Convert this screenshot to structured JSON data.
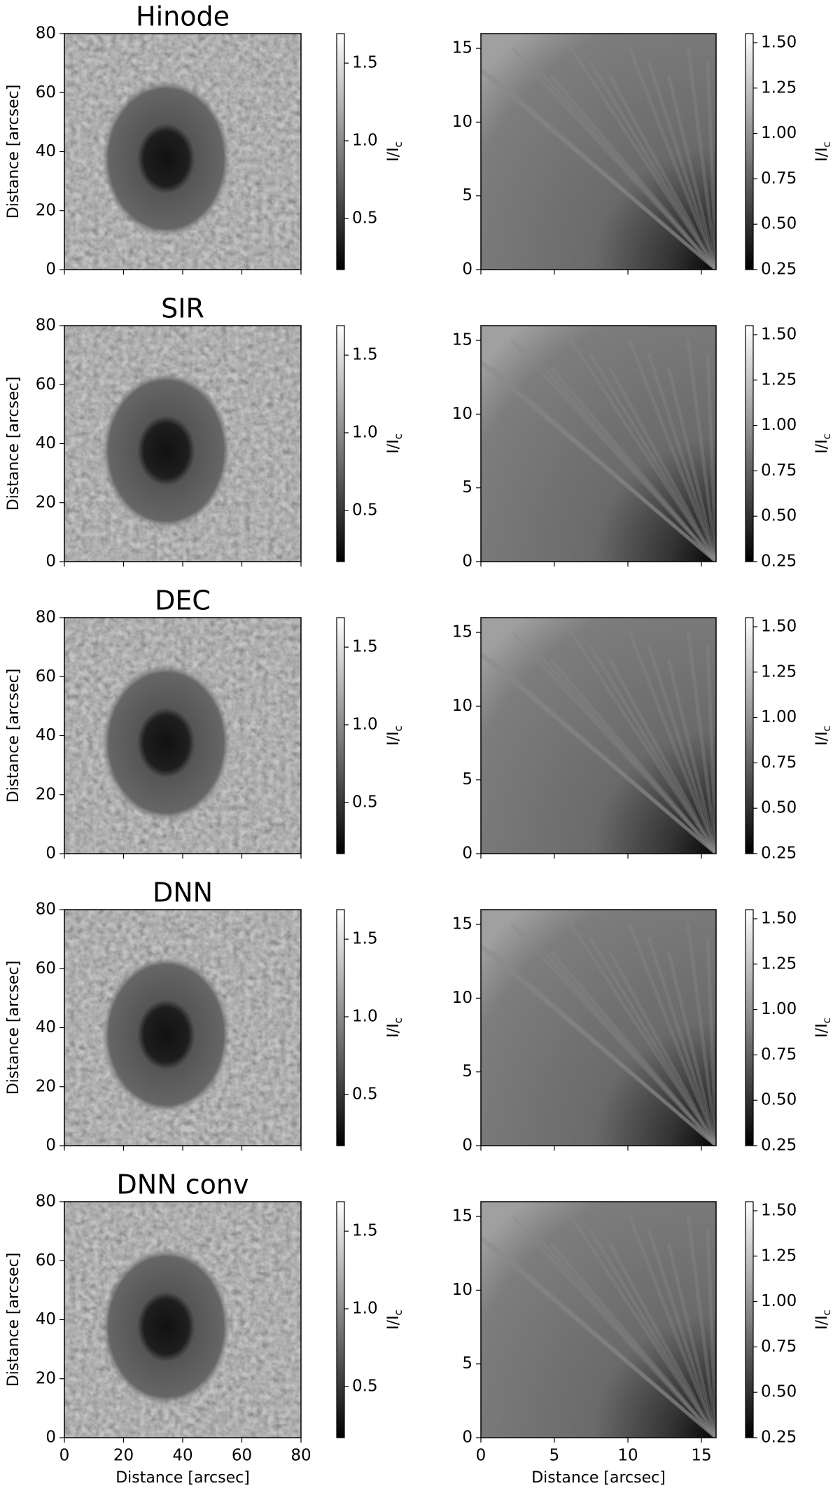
{
  "chart_data": [
    {
      "type": "image",
      "title": "Hinode",
      "ylabel": "Distance [arcsec]",
      "xlim": [
        0,
        80
      ],
      "ylim": [
        0,
        80
      ],
      "xticks": [
        0,
        20,
        40,
        60,
        80
      ],
      "yticks": [
        0,
        20,
        40,
        60,
        80
      ],
      "show_xticklabels": false,
      "colormap": "gray",
      "clim": [
        0.17,
        1.69
      ],
      "cticks": [
        0.5,
        {
          "value": 1,
          "label": "1.0"
        },
        1.5
      ],
      "clabel": "I/I",
      "clabel_sub": "c"
    },
    {
      "type": "image",
      "xlim": [
        0,
        16
      ],
      "ylim": [
        0,
        16
      ],
      "xticks": [
        0,
        5,
        10,
        15
      ],
      "yticks": [
        0,
        5,
        10,
        15
      ],
      "show_xticklabels": false,
      "colormap": "gray",
      "clim": [
        0.25,
        1.55
      ],
      "cticks": [
        0.25,
        {
          "value": 0.5,
          "label": "0.50"
        },
        0.75,
        {
          "value": 1,
          "label": "1.00"
        },
        1.25,
        {
          "value": 1.5,
          "label": "1.50"
        }
      ],
      "clabel": "I/I",
      "clabel_sub": "c"
    },
    {
      "type": "image",
      "title": "SIR",
      "ylabel": "Distance [arcsec]",
      "xlim": [
        0,
        80
      ],
      "ylim": [
        0,
        80
      ],
      "xticks": [
        0,
        20,
        40,
        60,
        80
      ],
      "yticks": [
        0,
        20,
        40,
        60,
        80
      ],
      "show_xticklabels": false,
      "colormap": "gray",
      "clim": [
        0.17,
        1.69
      ],
      "cticks": [
        0.5,
        {
          "value": 1,
          "label": "1.0"
        },
        1.5
      ],
      "clabel": "I/I",
      "clabel_sub": "c"
    },
    {
      "type": "image",
      "xlim": [
        0,
        16
      ],
      "ylim": [
        0,
        16
      ],
      "xticks": [
        0,
        5,
        10,
        15
      ],
      "yticks": [
        0,
        5,
        10,
        15
      ],
      "show_xticklabels": false,
      "colormap": "gray",
      "clim": [
        0.25,
        1.55
      ],
      "cticks": [
        0.25,
        {
          "value": 0.5,
          "label": "0.50"
        },
        0.75,
        {
          "value": 1,
          "label": "1.00"
        },
        1.25,
        {
          "value": 1.5,
          "label": "1.50"
        }
      ],
      "clabel": "I/I",
      "clabel_sub": "c"
    },
    {
      "type": "image",
      "title": "DEC",
      "ylabel": "Distance [arcsec]",
      "xlim": [
        0,
        80
      ],
      "ylim": [
        0,
        80
      ],
      "xticks": [
        0,
        20,
        40,
        60,
        80
      ],
      "yticks": [
        0,
        20,
        40,
        60,
        80
      ],
      "show_xticklabels": false,
      "colormap": "gray",
      "clim": [
        0.17,
        1.69
      ],
      "cticks": [
        0.5,
        {
          "value": 1,
          "label": "1.0"
        },
        1.5
      ],
      "clabel": "I/I",
      "clabel_sub": "c"
    },
    {
      "type": "image",
      "xlim": [
        0,
        16
      ],
      "ylim": [
        0,
        16
      ],
      "xticks": [
        0,
        5,
        10,
        15
      ],
      "yticks": [
        0,
        5,
        10,
        15
      ],
      "show_xticklabels": false,
      "colormap": "gray",
      "clim": [
        0.25,
        1.55
      ],
      "cticks": [
        0.25,
        {
          "value": 0.5,
          "label": "0.50"
        },
        0.75,
        {
          "value": 1,
          "label": "1.00"
        },
        1.25,
        {
          "value": 1.5,
          "label": "1.50"
        }
      ],
      "clabel": "I/I",
      "clabel_sub": "c"
    },
    {
      "type": "image",
      "title": "DNN",
      "ylabel": "Distance [arcsec]",
      "xlim": [
        0,
        80
      ],
      "ylim": [
        0,
        80
      ],
      "xticks": [
        0,
        20,
        40,
        60,
        80
      ],
      "yticks": [
        0,
        20,
        40,
        60,
        80
      ],
      "show_xticklabels": false,
      "colormap": "gray",
      "clim": [
        0.17,
        1.69
      ],
      "cticks": [
        0.5,
        {
          "value": 1,
          "label": "1.0"
        },
        1.5
      ],
      "clabel": "I/I",
      "clabel_sub": "c"
    },
    {
      "type": "image",
      "xlim": [
        0,
        16
      ],
      "ylim": [
        0,
        16
      ],
      "xticks": [
        0,
        5,
        10,
        15
      ],
      "yticks": [
        0,
        5,
        10,
        15
      ],
      "show_xticklabels": false,
      "colormap": "gray",
      "clim": [
        0.25,
        1.55
      ],
      "cticks": [
        0.25,
        {
          "value": 0.5,
          "label": "0.50"
        },
        0.75,
        {
          "value": 1,
          "label": "1.00"
        },
        1.25,
        {
          "value": 1.5,
          "label": "1.50"
        }
      ],
      "clabel": "I/I",
      "clabel_sub": "c"
    },
    {
      "type": "image",
      "title": "DNN conv",
      "ylabel": "Distance [arcsec]",
      "xlabel": "Distance [arcsec]",
      "xlim": [
        0,
        80
      ],
      "ylim": [
        0,
        80
      ],
      "xticks": [
        0,
        20,
        40,
        60,
        80
      ],
      "yticks": [
        0,
        20,
        40,
        60,
        80
      ],
      "show_xticklabels": true,
      "colormap": "gray",
      "clim": [
        0.17,
        1.69
      ],
      "cticks": [
        0.5,
        {
          "value": 1,
          "label": "1.0"
        },
        1.5
      ],
      "clabel": "I/I",
      "clabel_sub": "c"
    },
    {
      "type": "image",
      "xlabel": "Distance [arcsec]",
      "xlim": [
        0,
        16
      ],
      "ylim": [
        0,
        16
      ],
      "xticks": [
        0,
        5,
        10,
        15
      ],
      "yticks": [
        0,
        5,
        10,
        15
      ],
      "show_xticklabels": true,
      "colormap": "gray",
      "clim": [
        0.25,
        1.55
      ],
      "cticks": [
        0.25,
        {
          "value": 0.5,
          "label": "0.50"
        },
        0.75,
        {
          "value": 1,
          "label": "1.00"
        },
        1.25,
        {
          "value": 1.5,
          "label": "1.50"
        }
      ],
      "clabel": "I/I",
      "clabel_sub": "c"
    }
  ]
}
